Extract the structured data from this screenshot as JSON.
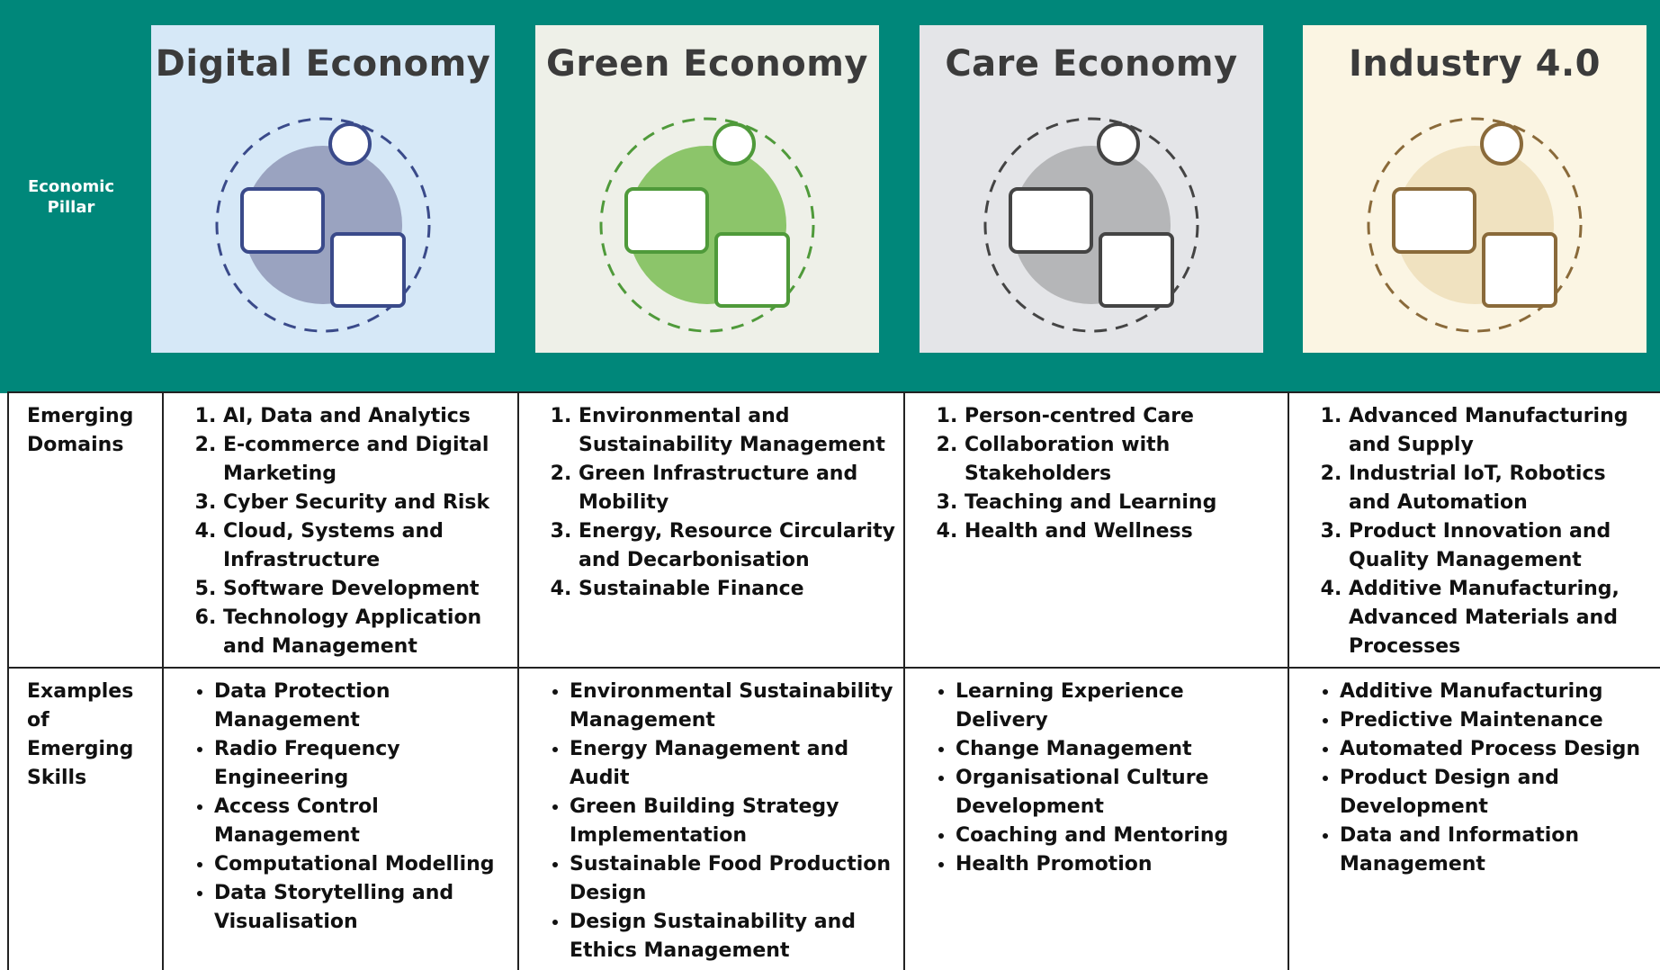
{
  "header": {
    "row_label": "Economic Pillar"
  },
  "rows": {
    "domains_label": "Emerging Domains",
    "skills_label": "Examples of Emerging Skills"
  },
  "columns": [
    {
      "title": "Digital Economy",
      "domains": [
        "AI, Data and Analytics",
        "E-commerce and Digital Marketing",
        "Cyber Security and Risk",
        "Cloud, Systems and Infrastructure",
        "Software Development",
        "Technology Application and Management"
      ],
      "skills": [
        "Data Protection Management",
        "Radio Frequency Engineering",
        "Access Control Management",
        "Computational Modelling",
        "Data Storytelling and Visualisation"
      ]
    },
    {
      "title": "Green Economy",
      "domains": [
        "Environmental and Sustainability Management",
        "Green Infrastructure and Mobility",
        "Energy, Resource Circularity and Decarbonisation",
        "Sustainable Finance"
      ],
      "skills": [
        "Environmental Sustainability Management",
        "Energy Management and Audit",
        "Green Building Strategy Implementation",
        "Sustainable Food Production Design",
        "Design Sustainability and Ethics Management"
      ]
    },
    {
      "title": "Care Economy",
      "domains": [
        "Person-centred Care",
        "Collaboration with Stakeholders",
        "Teaching and Learning",
        "Health and Wellness"
      ],
      "skills": [
        "Learning Experience Delivery",
        "Change Management",
        "Organisational Culture Development",
        "Coaching and Mentoring",
        "Health Promotion"
      ]
    },
    {
      "title": "Industry 4.0",
      "domains": [
        "Advanced Manufacturing and Supply",
        "Industrial IoT, Robotics and Automation",
        "Product Innovation and Quality Management",
        "Additive Manufacturing, Advanced Materials and Processes"
      ],
      "skills": [
        "Additive Manufacturing",
        "Predictive Maintenance",
        "Automated Process Design",
        "Product Design and Development",
        "Data and Information Management"
      ]
    }
  ]
}
